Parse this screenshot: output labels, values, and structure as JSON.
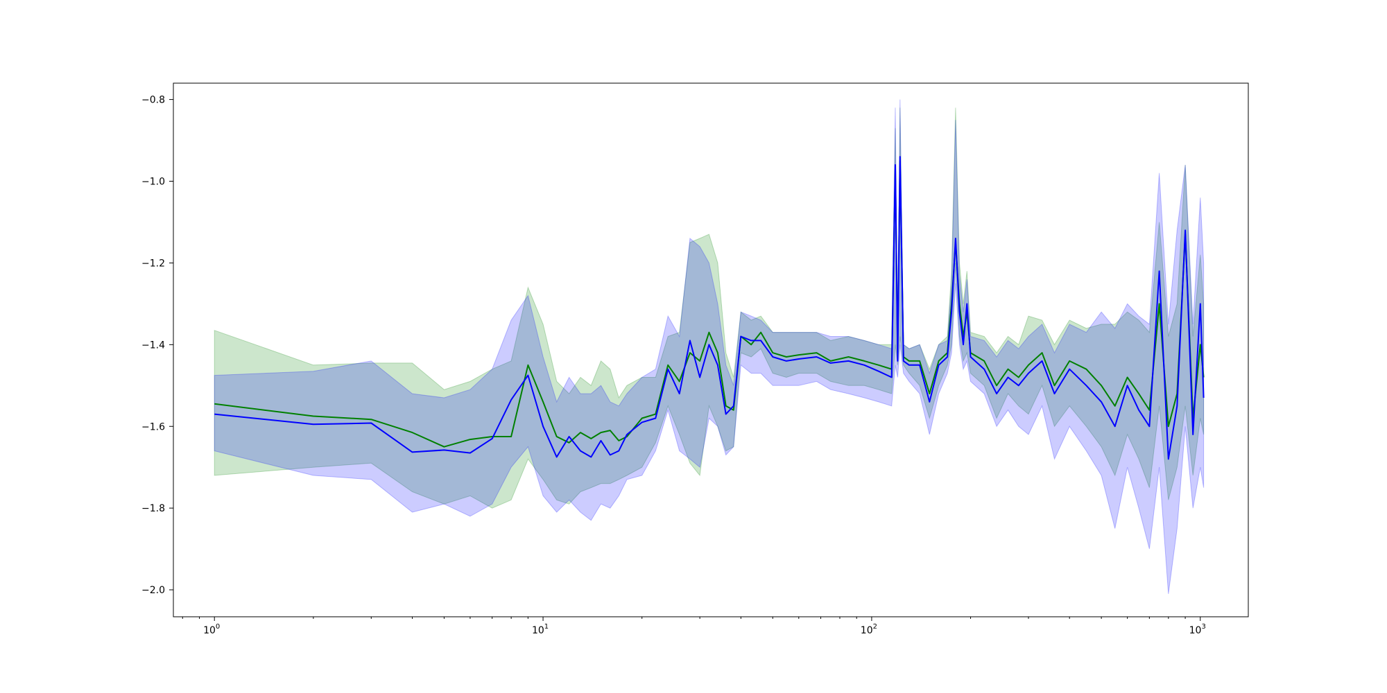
{
  "chart_data": {
    "type": "line",
    "title": "",
    "xlabel": "",
    "ylabel": "",
    "xscale": "log",
    "xlim": [
      0.75,
      1400
    ],
    "ylim": [
      -2.066,
      -0.76
    ],
    "grid": false,
    "legend": "none",
    "x_ticks": [
      {
        "value": 1,
        "base": "10",
        "exp": "0"
      },
      {
        "value": 10,
        "base": "10",
        "exp": "1"
      },
      {
        "value": 100,
        "base": "10",
        "exp": "2"
      },
      {
        "value": 1000,
        "base": "10",
        "exp": "3"
      }
    ],
    "y_ticks": [
      {
        "value": -0.8,
        "label": "−0.8"
      },
      {
        "value": -1.0,
        "label": "−1.0"
      },
      {
        "value": -1.2,
        "label": "−1.2"
      },
      {
        "value": -1.4,
        "label": "−1.4"
      },
      {
        "value": -1.6,
        "label": "−1.6"
      },
      {
        "value": -1.8,
        "label": "−1.8"
      },
      {
        "value": -2.0,
        "label": "−2.0"
      }
    ],
    "series": [
      {
        "color": "#008000",
        "band_color": "#008000",
        "band_opacity": 0.2,
        "x": [
          1,
          2,
          3,
          4,
          5,
          6,
          7,
          8,
          9,
          10,
          11,
          12,
          13,
          14,
          15,
          16,
          17,
          18,
          20,
          22,
          24,
          26,
          28,
          30,
          32,
          34,
          36,
          38,
          40,
          43,
          46,
          50,
          55,
          60,
          68,
          75,
          85,
          95,
          105,
          115,
          118,
          120,
          122,
          125,
          130,
          140,
          150,
          160,
          170,
          175,
          180,
          185,
          190,
          195,
          200,
          220,
          240,
          260,
          280,
          300,
          330,
          360,
          400,
          450,
          500,
          550,
          600,
          650,
          700,
          750,
          800,
          850,
          900,
          950,
          1000,
          1024
        ],
        "y": [
          -1.545,
          -1.575,
          -1.583,
          -1.615,
          -1.65,
          -1.632,
          -1.625,
          -1.625,
          -1.45,
          -1.54,
          -1.625,
          -1.64,
          -1.615,
          -1.63,
          -1.615,
          -1.61,
          -1.635,
          -1.625,
          -1.58,
          -1.57,
          -1.45,
          -1.49,
          -1.42,
          -1.44,
          -1.37,
          -1.42,
          -1.55,
          -1.56,
          -1.38,
          -1.4,
          -1.37,
          -1.42,
          -1.43,
          -1.425,
          -1.42,
          -1.44,
          -1.43,
          -1.44,
          -1.45,
          -1.46,
          -0.97,
          -1.42,
          -0.95,
          -1.43,
          -1.44,
          -1.44,
          -1.52,
          -1.44,
          -1.42,
          -1.3,
          -1.15,
          -1.3,
          -1.38,
          -1.32,
          -1.42,
          -1.44,
          -1.5,
          -1.46,
          -1.48,
          -1.45,
          -1.42,
          -1.5,
          -1.44,
          -1.46,
          -1.5,
          -1.55,
          -1.48,
          -1.52,
          -1.56,
          -1.3,
          -1.6,
          -1.52,
          -1.13,
          -1.58,
          -1.4,
          -1.48
        ],
        "lower": [
          -1.72,
          -1.7,
          -1.69,
          -1.76,
          -1.79,
          -1.77,
          -1.8,
          -1.78,
          -1.68,
          -1.73,
          -1.78,
          -1.79,
          -1.76,
          -1.75,
          -1.74,
          -1.74,
          -1.73,
          -1.72,
          -1.7,
          -1.64,
          -1.55,
          -1.62,
          -1.69,
          -1.72,
          -1.55,
          -1.6,
          -1.66,
          -1.65,
          -1.42,
          -1.43,
          -1.41,
          -1.47,
          -1.48,
          -1.47,
          -1.47,
          -1.49,
          -1.5,
          -1.5,
          -1.51,
          -1.52,
          -1.4,
          -1.45,
          -1.38,
          -1.45,
          -1.47,
          -1.5,
          -1.58,
          -1.5,
          -1.45,
          -1.4,
          -1.2,
          -1.38,
          -1.44,
          -1.42,
          -1.47,
          -1.5,
          -1.58,
          -1.52,
          -1.55,
          -1.57,
          -1.5,
          -1.6,
          -1.55,
          -1.6,
          -1.65,
          -1.72,
          -1.62,
          -1.68,
          -1.75,
          -1.55,
          -1.78,
          -1.7,
          -1.55,
          -1.72,
          -1.58,
          -1.62
        ],
        "upper": [
          -1.365,
          -1.45,
          -1.445,
          -1.445,
          -1.51,
          -1.49,
          -1.46,
          -1.44,
          -1.26,
          -1.35,
          -1.49,
          -1.52,
          -1.48,
          -1.5,
          -1.44,
          -1.46,
          -1.53,
          -1.5,
          -1.48,
          -1.48,
          -1.38,
          -1.37,
          -1.15,
          -1.14,
          -1.13,
          -1.2,
          -1.42,
          -1.48,
          -1.32,
          -1.34,
          -1.33,
          -1.37,
          -1.37,
          -1.37,
          -1.37,
          -1.39,
          -1.38,
          -1.39,
          -1.4,
          -1.4,
          -0.87,
          -1.38,
          -0.82,
          -1.4,
          -1.41,
          -1.4,
          -1.46,
          -1.4,
          -1.38,
          -1.22,
          -0.82,
          -1.2,
          -1.3,
          -1.22,
          -1.37,
          -1.38,
          -1.42,
          -1.38,
          -1.4,
          -1.33,
          -1.34,
          -1.4,
          -1.34,
          -1.36,
          -1.35,
          -1.35,
          -1.32,
          -1.34,
          -1.37,
          -1.1,
          -1.38,
          -1.3,
          -0.96,
          -1.38,
          -1.18,
          -1.3
        ]
      },
      {
        "color": "#0000ff",
        "band_color": "#0000ff",
        "band_opacity": 0.2,
        "x": [
          1,
          2,
          3,
          4,
          5,
          6,
          7,
          8,
          9,
          10,
          11,
          12,
          13,
          14,
          15,
          16,
          17,
          18,
          20,
          22,
          24,
          26,
          28,
          30,
          32,
          34,
          36,
          38,
          40,
          43,
          46,
          50,
          55,
          60,
          68,
          75,
          85,
          95,
          105,
          115,
          118,
          120,
          122,
          125,
          130,
          140,
          150,
          160,
          170,
          175,
          180,
          185,
          190,
          195,
          200,
          220,
          240,
          260,
          280,
          300,
          330,
          360,
          400,
          450,
          500,
          550,
          600,
          650,
          700,
          750,
          800,
          850,
          900,
          950,
          1000,
          1024
        ],
        "y": [
          -1.57,
          -1.595,
          -1.592,
          -1.663,
          -1.658,
          -1.665,
          -1.63,
          -1.535,
          -1.475,
          -1.6,
          -1.675,
          -1.625,
          -1.66,
          -1.675,
          -1.635,
          -1.67,
          -1.66,
          -1.62,
          -1.59,
          -1.58,
          -1.46,
          -1.52,
          -1.39,
          -1.48,
          -1.4,
          -1.45,
          -1.57,
          -1.55,
          -1.38,
          -1.39,
          -1.39,
          -1.43,
          -1.44,
          -1.435,
          -1.43,
          -1.445,
          -1.44,
          -1.45,
          -1.465,
          -1.48,
          -0.96,
          -1.44,
          -0.94,
          -1.44,
          -1.45,
          -1.45,
          -1.54,
          -1.45,
          -1.43,
          -1.32,
          -1.14,
          -1.32,
          -1.4,
          -1.3,
          -1.43,
          -1.46,
          -1.52,
          -1.48,
          -1.5,
          -1.47,
          -1.44,
          -1.52,
          -1.46,
          -1.5,
          -1.54,
          -1.6,
          -1.5,
          -1.56,
          -1.6,
          -1.22,
          -1.68,
          -1.55,
          -1.12,
          -1.62,
          -1.3,
          -1.53
        ],
        "lower": [
          -1.66,
          -1.72,
          -1.73,
          -1.81,
          -1.79,
          -1.82,
          -1.79,
          -1.7,
          -1.65,
          -1.77,
          -1.81,
          -1.78,
          -1.81,
          -1.83,
          -1.79,
          -1.8,
          -1.77,
          -1.73,
          -1.72,
          -1.66,
          -1.56,
          -1.66,
          -1.68,
          -1.7,
          -1.58,
          -1.6,
          -1.67,
          -1.65,
          -1.45,
          -1.47,
          -1.47,
          -1.5,
          -1.5,
          -1.5,
          -1.49,
          -1.51,
          -1.52,
          -1.53,
          -1.54,
          -1.55,
          -1.45,
          -1.48,
          -1.4,
          -1.47,
          -1.49,
          -1.52,
          -1.62,
          -1.52,
          -1.47,
          -1.42,
          -1.25,
          -1.4,
          -1.46,
          -1.44,
          -1.49,
          -1.52,
          -1.6,
          -1.56,
          -1.6,
          -1.62,
          -1.55,
          -1.68,
          -1.6,
          -1.66,
          -1.72,
          -1.85,
          -1.7,
          -1.8,
          -1.9,
          -1.7,
          -2.01,
          -1.85,
          -1.6,
          -1.8,
          -1.7,
          -1.75
        ],
        "upper": [
          -1.475,
          -1.465,
          -1.44,
          -1.52,
          -1.53,
          -1.51,
          -1.46,
          -1.34,
          -1.28,
          -1.43,
          -1.54,
          -1.48,
          -1.52,
          -1.52,
          -1.5,
          -1.54,
          -1.55,
          -1.52,
          -1.48,
          -1.46,
          -1.33,
          -1.38,
          -1.14,
          -1.16,
          -1.2,
          -1.3,
          -1.45,
          -1.5,
          -1.32,
          -1.33,
          -1.34,
          -1.37,
          -1.37,
          -1.37,
          -1.37,
          -1.38,
          -1.38,
          -1.39,
          -1.4,
          -1.41,
          -0.82,
          -1.4,
          -0.8,
          -1.4,
          -1.41,
          -1.4,
          -1.47,
          -1.4,
          -1.39,
          -1.25,
          -0.85,
          -1.23,
          -1.32,
          -1.24,
          -1.38,
          -1.39,
          -1.43,
          -1.39,
          -1.41,
          -1.38,
          -1.35,
          -1.42,
          -1.35,
          -1.37,
          -1.32,
          -1.36,
          -1.3,
          -1.33,
          -1.35,
          -0.98,
          -1.35,
          -1.12,
          -0.96,
          -1.35,
          -1.04,
          -1.2
        ]
      }
    ]
  }
}
